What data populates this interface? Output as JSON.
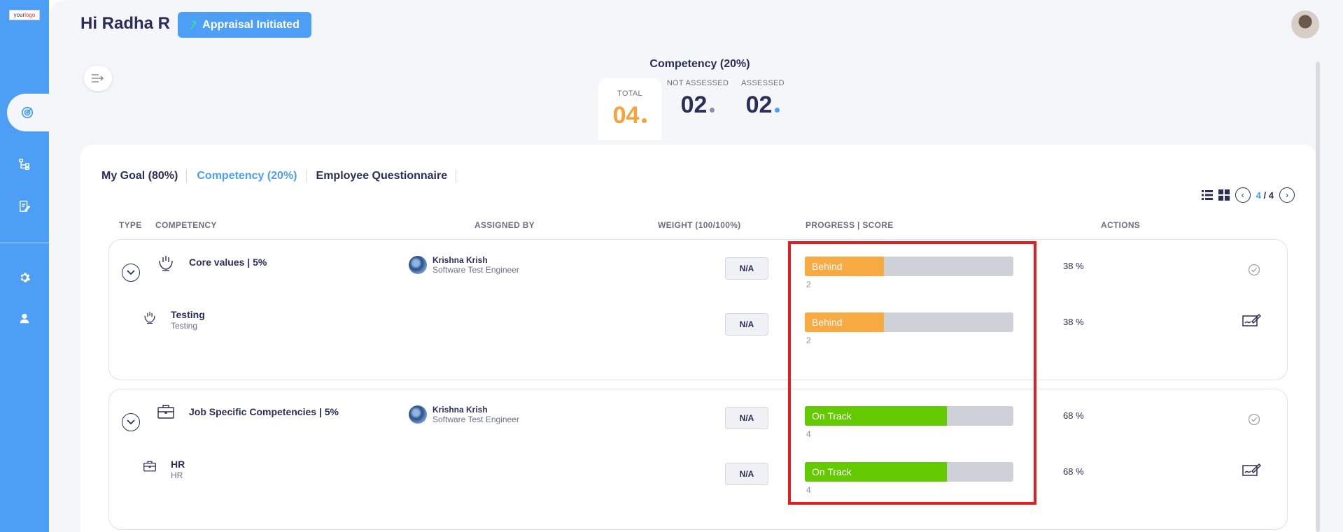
{
  "app": {
    "logo_text_a": "your",
    "logo_text_b": "logo"
  },
  "header": {
    "greeting": "Hi Radha R",
    "status_button": "Appraisal Initiated"
  },
  "summary": {
    "title": "Competency (20%)",
    "total": {
      "label": "TOTAL",
      "value": "04"
    },
    "not_assessed": {
      "label": "NOT ASSESSED",
      "value": "02"
    },
    "assessed": {
      "label": "ASSESSED",
      "value": "02"
    }
  },
  "tabs": [
    {
      "label": "My Goal (80%)"
    },
    {
      "label": "Competency (20%)"
    },
    {
      "label": "Employee Questionnaire"
    }
  ],
  "pager": {
    "current": "4",
    "separator": "/",
    "total": "4"
  },
  "table": {
    "headers": {
      "type": "TYPE",
      "competency": "COMPETENCY",
      "assigned_by": "ASSIGNED BY",
      "weight": "WEIGHT (100/100%)",
      "progress": "PROGRESS | SCORE",
      "actions": "ACTIONS"
    },
    "groups": [
      {
        "name": "Core values | 5%",
        "icon": "values-hands-icon",
        "assignee": {
          "name": "Krishna Krish",
          "role": "Software Test Engineer"
        },
        "weight": "N/A",
        "status": "Behind",
        "progress": 0.38,
        "score": "2",
        "percent": "38 %",
        "child": {
          "name": "Testing",
          "sub": "Testing",
          "weight": "N/A",
          "status": "Behind",
          "progress": 0.38,
          "score": "2",
          "percent": "38 %"
        }
      },
      {
        "name": "Job Specific Competencies | 5%",
        "icon": "briefcase-icon",
        "assignee": {
          "name": "Krishna Krish",
          "role": "Software Test Engineer"
        },
        "weight": "N/A",
        "status": "On Track",
        "progress": 0.68,
        "score": "4",
        "percent": "68 %",
        "child": {
          "name": "HR",
          "sub": "HR",
          "weight": "N/A",
          "status": "On Track",
          "progress": 0.68,
          "score": "4",
          "percent": "68 %"
        }
      }
    ]
  },
  "colors": {
    "accent": "#4d9ef5",
    "behind": "#f7a942",
    "on_track": "#63c900",
    "total_value": "#f7a23b",
    "highlight": "#e02020"
  }
}
